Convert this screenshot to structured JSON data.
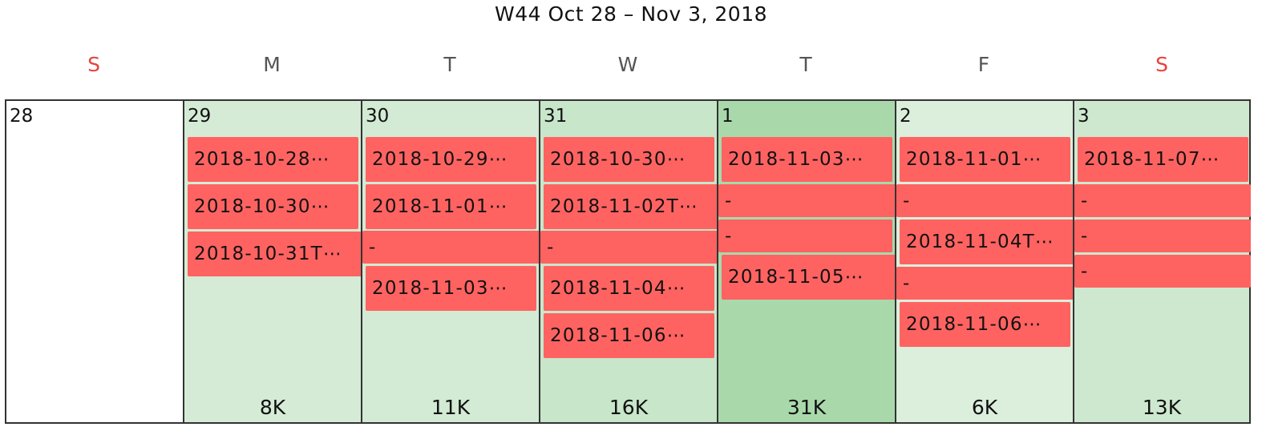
{
  "title": "W44 Oct 28 – Nov 3, 2018",
  "weekdays": [
    "S",
    "M",
    "T",
    "W",
    "T",
    "F",
    "S"
  ],
  "colors": {
    "weekend": "#e8423a",
    "event": "#ff6361",
    "heat_low": "#d9eedb",
    "heat_high": "#a8d9ab",
    "border": "#333333"
  },
  "days": [
    {
      "num": "28",
      "total": "",
      "events": []
    },
    {
      "num": "29",
      "total": "8K",
      "events": [
        "2018-10-28⋯",
        "2018-10-30⋯",
        "2018-10-31T⋯"
      ]
    },
    {
      "num": "30",
      "total": "11K",
      "events": [
        "2018-10-29⋯",
        "2018-11-01⋯",
        "-",
        "2018-11-03⋯"
      ]
    },
    {
      "num": "31",
      "total": "16K",
      "events": [
        "2018-10-30⋯",
        "2018-11-02T⋯",
        "-",
        "2018-11-04⋯",
        "2018-11-06⋯"
      ]
    },
    {
      "num": "1",
      "total": "31K",
      "events": [
        "2018-11-03⋯",
        "-",
        "-",
        "2018-11-05⋯"
      ]
    },
    {
      "num": "2",
      "total": "6K",
      "events": [
        "2018-11-01⋯",
        "-",
        "2018-11-04T⋯",
        "-",
        "2018-11-06⋯"
      ]
    },
    {
      "num": "3",
      "total": "13K",
      "events": [
        "2018-11-07⋯",
        "-",
        "-",
        "-"
      ]
    }
  ]
}
